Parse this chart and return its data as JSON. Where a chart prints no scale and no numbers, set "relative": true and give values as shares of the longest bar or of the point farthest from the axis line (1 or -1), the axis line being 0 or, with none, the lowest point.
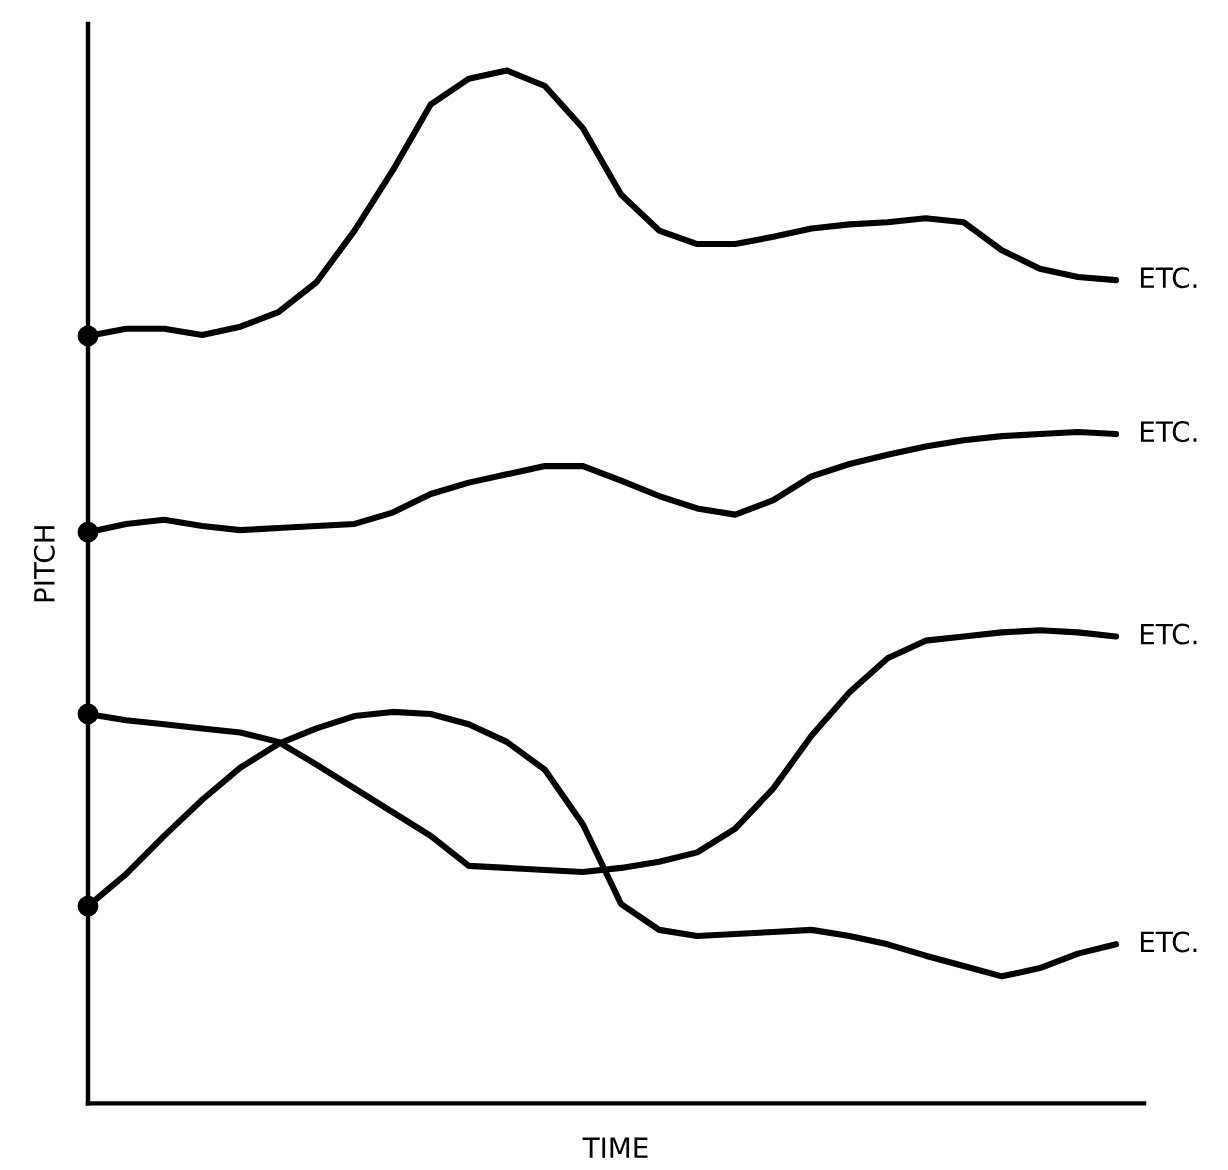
{
  "chart_data": {
    "type": "line",
    "relative": true,
    "xlabel": "TIME",
    "ylabel": "PITCH",
    "tick_labels": false,
    "legend": false,
    "line_style": "solid",
    "categories": [
      null,
      null,
      null,
      null,
      null,
      null,
      null,
      null,
      null,
      null,
      null,
      null,
      null,
      null,
      null,
      null,
      null,
      null,
      null,
      null,
      null,
      null,
      null,
      null,
      null,
      null,
      null,
      null
    ],
    "series": [
      {
        "name": "ETC.",
        "color": "#000000",
        "values": [
          0.743,
          0.75,
          0.75,
          0.744,
          0.752,
          0.766,
          0.795,
          0.845,
          0.903,
          0.967,
          0.992,
          1.0,
          0.985,
          0.944,
          0.88,
          0.845,
          0.832,
          0.832,
          0.839,
          0.847,
          0.851,
          0.853,
          0.857,
          0.853,
          0.826,
          0.808,
          0.8,
          0.797
        ]
      },
      {
        "name": "ETC.",
        "color": "#000000",
        "values": [
          0.553,
          0.561,
          0.565,
          0.559,
          0.555,
          0.557,
          0.559,
          0.561,
          0.572,
          0.59,
          0.601,
          0.609,
          0.617,
          0.617,
          0.603,
          0.588,
          0.576,
          0.57,
          0.584,
          0.607,
          0.619,
          0.628,
          0.636,
          0.642,
          0.646,
          0.648,
          0.65,
          0.648
        ]
      },
      {
        "name": "ETC.",
        "color": "#000000",
        "values": [
          0.377,
          0.371,
          0.367,
          0.363,
          0.359,
          0.35,
          0.328,
          0.305,
          0.282,
          0.259,
          0.23,
          0.228,
          0.226,
          0.224,
          0.228,
          0.234,
          0.243,
          0.266,
          0.305,
          0.356,
          0.398,
          0.431,
          0.448,
          0.452,
          0.456,
          0.458,
          0.456,
          0.452
        ]
      },
      {
        "name": "ETC.",
        "color": "#000000",
        "values": [
          0.191,
          0.222,
          0.259,
          0.294,
          0.325,
          0.348,
          0.363,
          0.375,
          0.379,
          0.377,
          0.367,
          0.35,
          0.323,
          0.27,
          0.193,
          0.168,
          0.162,
          0.164,
          0.166,
          0.168,
          0.162,
          0.154,
          0.143,
          0.133,
          0.123,
          0.131,
          0.145,
          0.154
        ]
      },
      {
        "marker": "circle",
        "color": "#000000",
        "values": [
          0.743,
          null,
          null,
          null,
          null,
          null,
          null,
          null,
          null,
          null,
          null,
          null,
          null,
          null,
          null,
          null,
          null,
          null,
          null,
          null,
          null,
          null,
          null,
          null,
          null,
          null,
          null,
          null
        ]
      },
      {
        "marker": "circle",
        "color": "#000000",
        "values": [
          0.553,
          null,
          null,
          null,
          null,
          null,
          null,
          null,
          null,
          null,
          null,
          null,
          null,
          null,
          null,
          null,
          null,
          null,
          null,
          null,
          null,
          null,
          null,
          null,
          null,
          null,
          null,
          null
        ]
      },
      {
        "marker": "circle",
        "color": "#000000",
        "values": [
          0.377,
          null,
          null,
          null,
          null,
          null,
          null,
          null,
          null,
          null,
          null,
          null,
          null,
          null,
          null,
          null,
          null,
          null,
          null,
          null,
          null,
          null,
          null,
          null,
          null,
          null,
          null,
          null
        ]
      },
      {
        "marker": "circle",
        "color": "#000000",
        "values": [
          0.191,
          null,
          null,
          null,
          null,
          null,
          null,
          null,
          null,
          null,
          null,
          null,
          null,
          null,
          null,
          null,
          null,
          null,
          null,
          null,
          null,
          null,
          null,
          null,
          null,
          null,
          null,
          null
        ]
      }
    ]
  }
}
